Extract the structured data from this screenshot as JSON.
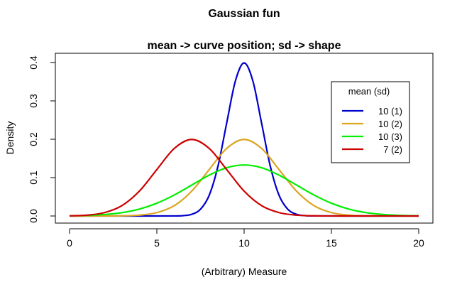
{
  "chart_data": {
    "type": "line",
    "title": "Gaussian fun",
    "subtitle": "mean -> curve position; sd -> shape",
    "xlabel": "(Arbitrary) Measure",
    "ylabel": "Density",
    "xlim": [
      0,
      20
    ],
    "ylim": [
      0,
      0.4
    ],
    "xticks": [
      "0",
      "5",
      "10",
      "15",
      "20"
    ],
    "yticks": [
      "0.0",
      "0.1",
      "0.2",
      "0.3",
      "0.4"
    ],
    "grid": false,
    "legend": {
      "title": "mean (sd)",
      "placement": "top-right",
      "entries": [
        "10 (1)",
        "10 (2)",
        "10 (3)",
        "7 (2)"
      ]
    },
    "series": [
      {
        "name": "10 (1)",
        "mean": 10,
        "sd": 1,
        "color": "#0000cd",
        "x": [
          0,
          2,
          4,
          6,
          6.5,
          7,
          7.5,
          8,
          8.5,
          9,
          9.5,
          10,
          10.5,
          11,
          11.5,
          12,
          12.5,
          13,
          13.5,
          14,
          16,
          18,
          20
        ],
        "y": [
          0,
          0,
          0,
          0.0001,
          0.0009,
          0.0044,
          0.0175,
          0.054,
          0.1295,
          0.242,
          0.3521,
          0.3989,
          0.3521,
          0.242,
          0.1295,
          0.054,
          0.0175,
          0.0044,
          0.0009,
          0.0001,
          0,
          0,
          0
        ]
      },
      {
        "name": "10 (2)",
        "mean": 10,
        "sd": 2,
        "color": "#daa520",
        "x": [
          0,
          1,
          2,
          3,
          4,
          5,
          6,
          7,
          8,
          9,
          10,
          11,
          12,
          13,
          14,
          15,
          16,
          17,
          18,
          19,
          20
        ],
        "y": [
          0,
          0,
          0.0001,
          0.0004,
          0.0022,
          0.0088,
          0.027,
          0.0648,
          0.121,
          0.176,
          0.1995,
          0.176,
          0.121,
          0.0648,
          0.027,
          0.0088,
          0.0022,
          0.0004,
          0.0001,
          0,
          0
        ]
      },
      {
        "name": "10 (3)",
        "mean": 10,
        "sd": 3,
        "color": "#00ee00",
        "x": [
          0,
          1,
          2,
          3,
          4,
          5,
          6,
          7,
          8,
          9,
          10,
          11,
          12,
          13,
          14,
          15,
          16,
          17,
          18,
          19,
          20
        ],
        "y": [
          0.0005,
          0.0015,
          0.0038,
          0.0087,
          0.018,
          0.0332,
          0.0547,
          0.0807,
          0.1065,
          0.1258,
          0.133,
          0.1258,
          0.1065,
          0.0807,
          0.0547,
          0.0332,
          0.018,
          0.0087,
          0.0038,
          0.0015,
          0.0005
        ]
      },
      {
        "name": "7 (2)",
        "mean": 7,
        "sd": 2,
        "color": "#cc0000",
        "x": [
          0,
          1,
          2,
          3,
          4,
          5,
          6,
          7,
          8,
          9,
          10,
          11,
          12,
          13,
          14,
          15,
          16,
          17,
          18,
          19,
          20
        ],
        "y": [
          0.0004,
          0.0022,
          0.0088,
          0.027,
          0.0648,
          0.121,
          0.176,
          0.1995,
          0.176,
          0.121,
          0.0648,
          0.027,
          0.0088,
          0.0022,
          0.0004,
          0.0001,
          0,
          0,
          0,
          0,
          0
        ]
      }
    ]
  }
}
